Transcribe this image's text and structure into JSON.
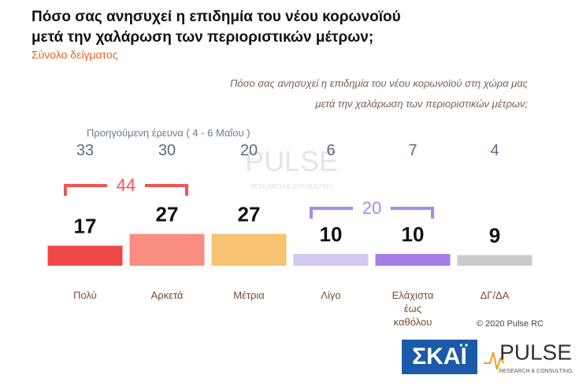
{
  "chart_data": {
    "type": "bar",
    "title": [
      "Πόσο σας ανησυχεί η επιδημία του νέου κορωνοϊού",
      "μετά την χαλάρωση των περιοριστικών μέτρων;"
    ],
    "subtitle": "Σύνολο δείγματος",
    "question": [
      "Πόσο σας ανησυχεί η επιδημία του νέου κορωνοϊού στη χώρα μας",
      "μετά την χαλάρωση των περιοριστικών μέτρων;"
    ],
    "categories": [
      [
        "Πολύ"
      ],
      [
        "Αρκετά"
      ],
      [
        "Μέτρια"
      ],
      [
        "Λίγο"
      ],
      [
        "Ελάχιστα",
        "έως",
        "καθόλου"
      ],
      [
        "ΔΓ/ΔΑ"
      ]
    ],
    "values": [
      17,
      27,
      27,
      10,
      10,
      9
    ],
    "colors": [
      "#f04848",
      "#f98d82",
      "#f8c372",
      "#d3c8ee",
      "#a47ee8",
      "#cacaca"
    ],
    "previous": {
      "label": "Προηγούμενη έρευνα   ( 4 - 6 Μαΐου )",
      "values": [
        33,
        30,
        20,
        6,
        7,
        4
      ]
    },
    "groups": [
      {
        "value": 44,
        "categories": [
          "Πολύ",
          "Αρκετά"
        ],
        "color": "#f05555"
      },
      {
        "value": 20,
        "categories": [
          "Λίγο",
          "Ελάχιστα"
        ],
        "color": "#a98ae6"
      }
    ],
    "copyright": "© 2020 Pulse RC",
    "watermark": [
      "PULSE",
      "RESEARCH & CONSULTING"
    ],
    "logos": {
      "skai": "ΣΚΑΪ",
      "pulse": "PULSE",
      "pulse_sub": "RESEARCH & CONSULTING"
    }
  }
}
